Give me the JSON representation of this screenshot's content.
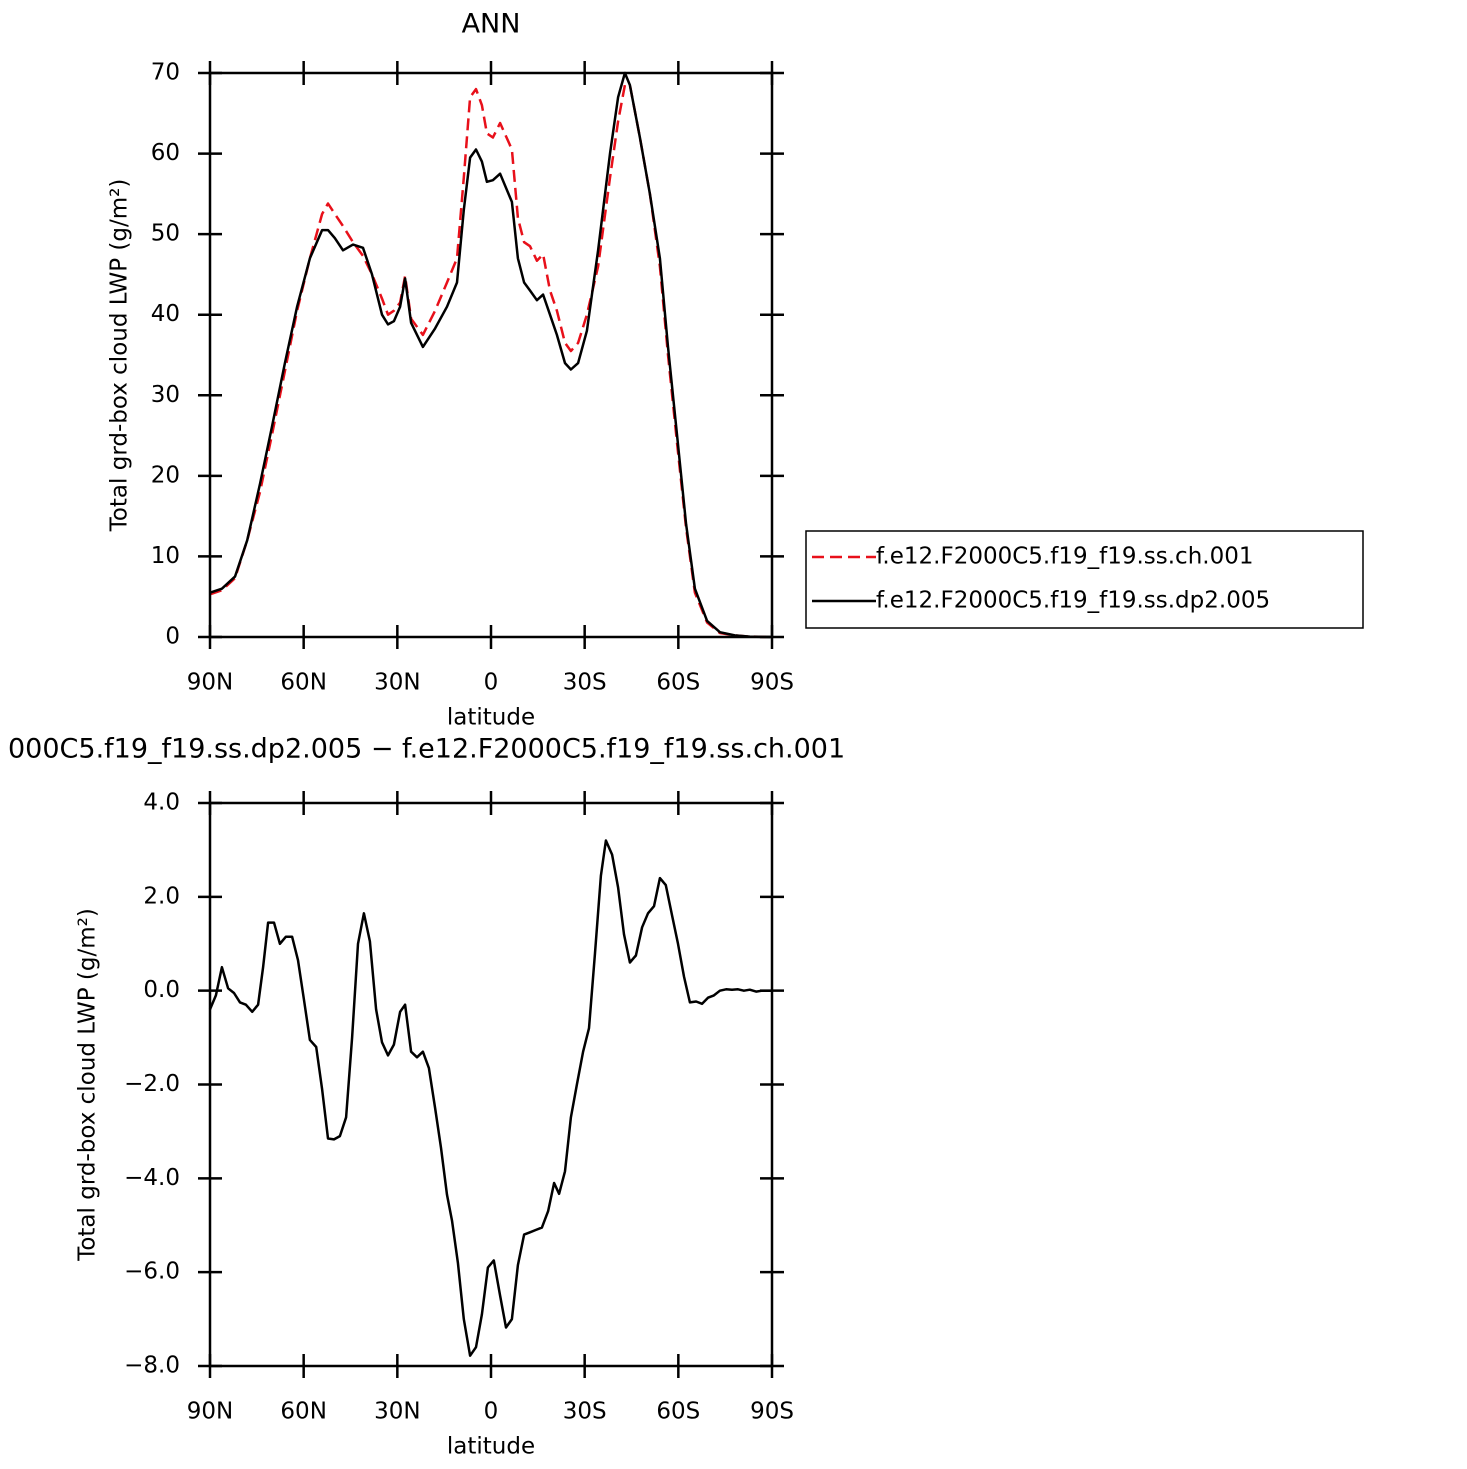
{
  "chart_data": [
    {
      "type": "line",
      "title": "ANN",
      "xlabel": "latitude",
      "ylabel": "Total grd-box cloud LWP (g/m²)",
      "xlim": [
        90,
        -90
      ],
      "xticks": [
        {
          "value": 90,
          "label": "90N"
        },
        {
          "value": 60,
          "label": "60N"
        },
        {
          "value": 30,
          "label": "30N"
        },
        0,
        {
          "value": -30,
          "label": "30S"
        },
        {
          "value": -60,
          "label": "60S"
        },
        {
          "value": -90,
          "label": "90S"
        }
      ],
      "ylim": [
        0,
        70
      ],
      "yticks": [
        0,
        10,
        20,
        30,
        40,
        50,
        60,
        70
      ],
      "legend": "right",
      "x": [
        90,
        86.2,
        82.0,
        78.1,
        74.0,
        70.2,
        66.0,
        62.1,
        58.0,
        54.1,
        52.2,
        50.0,
        47.4,
        44.2,
        41.0,
        38.1,
        34.9,
        33.0,
        31.1,
        29.1,
        27.5,
        25.6,
        21.8,
        17.9,
        14.1,
        10.9,
        8.7,
        6.7,
        4.8,
        2.9,
        1.3,
        -0.6,
        -2.9,
        -6.7,
        -8.6,
        -10.6,
        -12.5,
        -14.7,
        -16.7,
        -18.9,
        -21.1,
        -23.7,
        -25.6,
        -27.9,
        -30.7,
        -34.3,
        -38.1,
        -40.7,
        -42.9,
        -44.5,
        -47.7,
        -50.9,
        -54.1,
        -56.7,
        -59.6,
        -62.5,
        -65.3,
        -69.2,
        -73.3,
        -78.1,
        -82.9,
        -89.4
      ],
      "series": [
        {
          "name": "f.e12.F2000C5.f19_f19.ss.ch.001",
          "color": "#e8101a",
          "line_style": "dashed",
          "values": [
            5.3,
            5.8,
            7.3,
            12,
            18,
            25,
            33,
            40.5,
            47,
            52.5,
            53.8,
            52.5,
            51,
            49,
            47.3,
            45,
            42,
            40,
            40.5,
            41.5,
            44.8,
            39.5,
            37.5,
            40.5,
            44,
            47,
            57,
            67,
            68,
            66,
            62.5,
            62,
            63.8,
            60.5,
            52,
            49,
            48.5,
            46.7,
            47.5,
            43,
            40.5,
            36.5,
            35.5,
            36.5,
            40,
            46,
            57,
            64,
            68.5,
            68.5,
            62,
            55,
            46,
            35,
            24,
            13.5,
            5.5,
            1.8,
            0.5,
            0.2,
            0.05,
            0
          ]
        },
        {
          "name": "f.e12.F2000C5.f19_f19.ss.dp2.005",
          "color": "#000000",
          "line_style": "solid",
          "values": [
            5.5,
            6,
            7.5,
            12,
            19,
            26,
            34,
            41,
            47,
            50.5,
            50.5,
            49.5,
            48,
            48.7,
            48.3,
            45,
            40,
            38.8,
            39.2,
            41,
            44.5,
            39,
            36,
            38.3,
            41,
            44,
            53,
            59.5,
            60.5,
            59,
            56.5,
            56.7,
            57.5,
            54,
            47,
            44,
            43,
            41.8,
            42.5,
            40,
            37.5,
            34,
            33.2,
            34,
            38,
            48,
            60,
            67,
            70,
            68.5,
            62,
            55,
            47,
            36,
            25,
            14,
            6,
            2,
            0.6,
            0.2,
            0.05,
            0
          ]
        }
      ]
    },
    {
      "type": "line",
      "title": "000C5.f19_f19.ss.dp2.005 − f.e12.F2000C5.f19_f19.ss.ch.001",
      "xlabel": "latitude",
      "ylabel": "Total grd-box cloud LWP (g/m²)",
      "xlim": [
        90,
        -90
      ],
      "xticks": [
        {
          "value": 90,
          "label": "90N"
        },
        {
          "value": 60,
          "label": "60N"
        },
        {
          "value": 30,
          "label": "30N"
        },
        0,
        {
          "value": -30,
          "label": "30S"
        },
        {
          "value": -60,
          "label": "60S"
        },
        {
          "value": -90,
          "label": "90S"
        }
      ],
      "ylim": [
        -8,
        4
      ],
      "yticks": [
        {
          "value": -8,
          "label": "−8.0"
        },
        {
          "value": -6,
          "label": "−6.0"
        },
        {
          "value": -4,
          "label": "−4.0"
        },
        {
          "value": -2,
          "label": "−2.0"
        },
        {
          "value": 0,
          "label": "0.0"
        },
        {
          "value": 2,
          "label": "2.0"
        },
        {
          "value": 4,
          "label": "4.0"
        }
      ],
      "x": [
        90.0,
        88.1,
        86.2,
        84.2,
        82.3,
        80.4,
        78.5,
        76.5,
        74.6,
        73.0,
        71.4,
        69.5,
        67.6,
        65.7,
        63.7,
        61.8,
        59.9,
        58.0,
        56.0,
        54.1,
        52.2,
        50.3,
        48.4,
        46.4,
        44.5,
        42.6,
        40.7,
        38.8,
        36.8,
        34.9,
        33.0,
        31.1,
        29.1,
        27.5,
        25.6,
        23.7,
        21.8,
        19.9,
        17.9,
        16.0,
        14.1,
        12.5,
        10.6,
        8.7,
        6.7,
        4.8,
        2.9,
        1.0,
        -0.9,
        -2.9,
        -4.8,
        -6.7,
        -8.6,
        -10.6,
        -12.5,
        -14.4,
        -16.3,
        -18.3,
        -20.2,
        -21.8,
        -23.7,
        -25.6,
        -27.5,
        -29.5,
        -31.4,
        -33.3,
        -35.2,
        -36.8,
        -38.8,
        -40.7,
        -42.6,
        -44.5,
        -46.4,
        -48.4,
        -50.3,
        -52.2,
        -54.1,
        -56.0,
        -58.0,
        -59.9,
        -61.8,
        -63.7,
        -65.7,
        -67.6,
        -69.5,
        -71.4,
        -73.3,
        -75.3,
        -77.2,
        -79.1,
        -81.0,
        -82.9,
        -84.9,
        -86.8,
        -90.0
      ],
      "series": [
        {
          "color": "#000000",
          "line_style": "solid",
          "values": [
            -0.4,
            -0.1,
            0.5,
            0.05,
            -0.05,
            -0.25,
            -0.3,
            -0.45,
            -0.3,
            0.5,
            1.45,
            1.45,
            1.0,
            1.15,
            1.15,
            0.65,
            -0.2,
            -1.05,
            -1.2,
            -2.1,
            -3.15,
            -3.17,
            -3.1,
            -2.7,
            -1.0,
            1.0,
            1.65,
            1.05,
            -0.4,
            -1.1,
            -1.38,
            -1.15,
            -0.45,
            -0.3,
            -1.3,
            -1.42,
            -1.3,
            -1.65,
            -2.5,
            -3.35,
            -4.35,
            -4.9,
            -5.8,
            -7.0,
            -7.78,
            -7.6,
            -6.9,
            -5.9,
            -5.75,
            -6.5,
            -7.18,
            -7.0,
            -5.85,
            -5.2,
            -5.15,
            -5.1,
            -5.05,
            -4.7,
            -4.1,
            -4.33,
            -3.85,
            -2.7,
            -2.0,
            -1.3,
            -0.8,
            0.8,
            2.45,
            3.2,
            2.9,
            2.2,
            1.2,
            0.6,
            0.75,
            1.35,
            1.65,
            1.8,
            2.4,
            2.25,
            1.6,
            1.0,
            0.3,
            -0.25,
            -0.23,
            -0.28,
            -0.15,
            -0.1,
            0.0,
            0.03,
            0.02,
            0.03,
            0.0,
            0.02,
            -0.02,
            0.0,
            0.0
          ]
        }
      ]
    }
  ]
}
